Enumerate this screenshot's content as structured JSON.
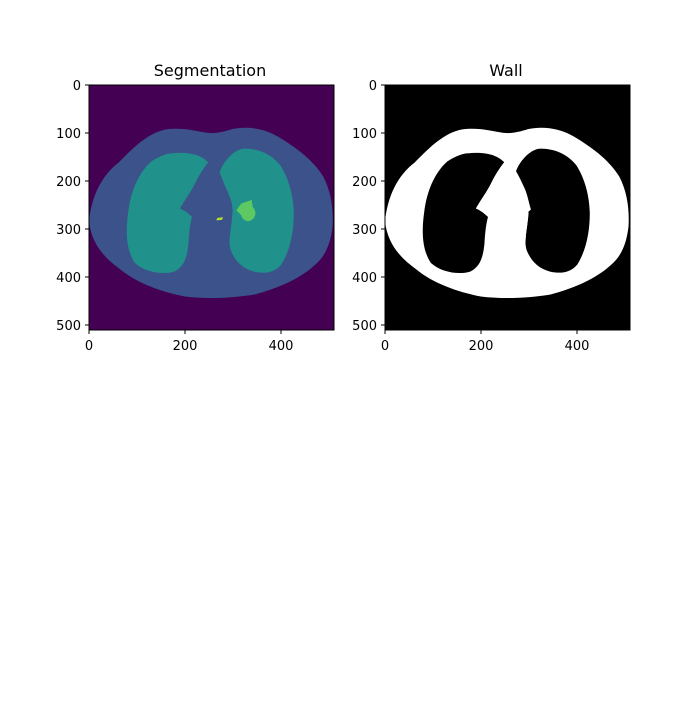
{
  "figure": {
    "panels": [
      {
        "id": "segmentation",
        "title": "Segmentation",
        "x_ticks": [
          "0",
          "200",
          "400"
        ],
        "y_ticks": [
          "0",
          "100",
          "200",
          "300",
          "400",
          "500"
        ],
        "colors": {
          "background": "#440154",
          "body": "#3b528b",
          "lung": "#21918c",
          "airway": "#5ec962",
          "ring": "#b7de2a"
        }
      },
      {
        "id": "wall",
        "title": "Wall",
        "x_ticks": [
          "0",
          "200",
          "400"
        ],
        "y_ticks": [
          "0",
          "100",
          "200",
          "300",
          "400",
          "500"
        ],
        "colors": {
          "background": "#000000",
          "wall": "#ffffff"
        }
      }
    ]
  }
}
